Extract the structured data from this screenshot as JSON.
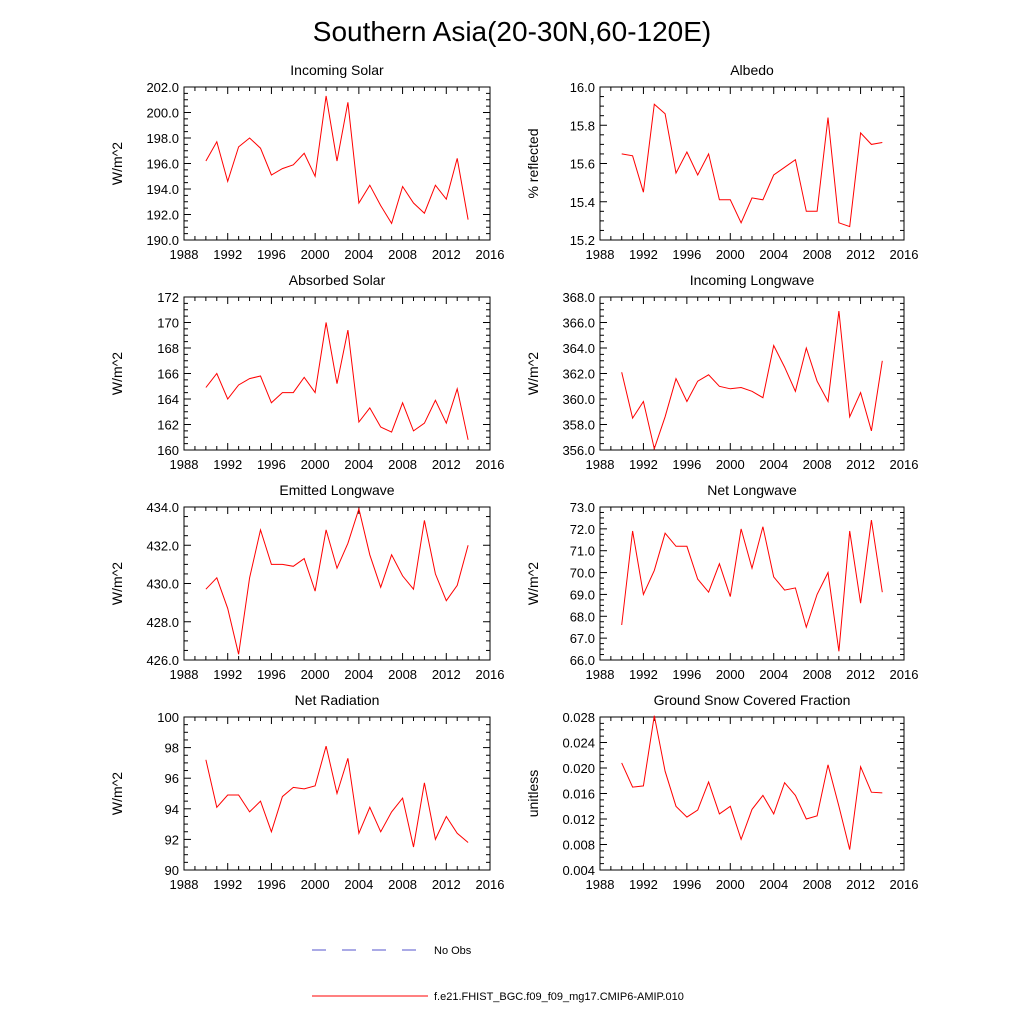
{
  "figure": {
    "title": "Southern Asia(20-30N,60-120E)",
    "line_color": "#ff0000",
    "obs_color": "#5555cc"
  },
  "legend": {
    "obs_label": "No Obs",
    "model_label": "f.e21.FHIST_BGC.f09_f09_mg17.CMIP6-AMIP.010"
  },
  "chart_data": [
    {
      "type": "line",
      "title": "Incoming Solar",
      "ylabel": "W/m^2",
      "xlabel": "",
      "xlim": [
        1988,
        2016
      ],
      "xticks": [
        "1988",
        "1992",
        "1996",
        "2000",
        "2004",
        "2008",
        "2012",
        "2016"
      ],
      "ylim": [
        190,
        202
      ],
      "yticks": [
        "190.0",
        "192.0",
        "194.0",
        "196.0",
        "198.0",
        "200.0",
        "202.0"
      ],
      "x": [
        1990,
        1991,
        1992,
        1993,
        1994,
        1995,
        1996,
        1997,
        1998,
        1999,
        2000,
        2001,
        2002,
        2003,
        2004,
        2005,
        2006,
        2007,
        2008,
        2009,
        2010,
        2011,
        2012,
        2013,
        2014
      ],
      "values": [
        196.2,
        197.7,
        194.6,
        197.3,
        198.0,
        197.2,
        195.1,
        195.6,
        195.9,
        196.8,
        195.0,
        201.3,
        196.2,
        200.8,
        192.9,
        194.3,
        192.7,
        191.3,
        194.2,
        192.9,
        192.1,
        194.3,
        193.2,
        196.4,
        191.6
      ]
    },
    {
      "type": "line",
      "title": "Albedo",
      "ylabel": "% reflected",
      "xlabel": "",
      "xlim": [
        1988,
        2016
      ],
      "xticks": [
        "1988",
        "1992",
        "1996",
        "2000",
        "2004",
        "2008",
        "2012",
        "2016"
      ],
      "ylim": [
        15.2,
        16.0
      ],
      "yticks": [
        "15.2",
        "15.4",
        "15.6",
        "15.8",
        "16.0"
      ],
      "x": [
        1990,
        1991,
        1992,
        1993,
        1994,
        1995,
        1996,
        1997,
        1998,
        1999,
        2000,
        2001,
        2002,
        2003,
        2004,
        2005,
        2006,
        2007,
        2008,
        2009,
        2010,
        2011,
        2012,
        2013,
        2014
      ],
      "values": [
        15.65,
        15.64,
        15.45,
        15.91,
        15.86,
        15.55,
        15.66,
        15.54,
        15.65,
        15.41,
        15.41,
        15.29,
        15.42,
        15.41,
        15.54,
        15.58,
        15.62,
        15.35,
        15.35,
        15.84,
        15.29,
        15.27,
        15.76,
        15.7,
        15.71
      ]
    },
    {
      "type": "line",
      "title": "Absorbed Solar",
      "ylabel": "W/m^2",
      "xlabel": "",
      "xlim": [
        1988,
        2016
      ],
      "xticks": [
        "1988",
        "1992",
        "1996",
        "2000",
        "2004",
        "2008",
        "2012",
        "2016"
      ],
      "ylim": [
        160,
        172
      ],
      "yticks": [
        "160",
        "162",
        "164",
        "166",
        "168",
        "170",
        "172"
      ],
      "x": [
        1990,
        1991,
        1992,
        1993,
        1994,
        1995,
        1996,
        1997,
        1998,
        1999,
        2000,
        2001,
        2002,
        2003,
        2004,
        2005,
        2006,
        2007,
        2008,
        2009,
        2010,
        2011,
        2012,
        2013,
        2014
      ],
      "values": [
        164.9,
        166.0,
        164.0,
        165.1,
        165.6,
        165.8,
        163.7,
        164.5,
        164.5,
        165.7,
        164.5,
        170.0,
        165.2,
        169.4,
        162.2,
        163.3,
        161.8,
        161.4,
        163.7,
        161.5,
        162.1,
        163.9,
        162.1,
        164.8,
        160.8
      ]
    },
    {
      "type": "line",
      "title": "Incoming Longwave",
      "ylabel": "W/m^2",
      "xlabel": "",
      "xlim": [
        1988,
        2016
      ],
      "xticks": [
        "1988",
        "1992",
        "1996",
        "2000",
        "2004",
        "2008",
        "2012",
        "2016"
      ],
      "ylim": [
        356,
        368
      ],
      "yticks": [
        "356.0",
        "358.0",
        "360.0",
        "362.0",
        "364.0",
        "366.0",
        "368.0"
      ],
      "x": [
        1990,
        1991,
        1992,
        1993,
        1994,
        1995,
        1996,
        1997,
        1998,
        1999,
        2000,
        2001,
        2002,
        2003,
        2004,
        2005,
        2006,
        2007,
        2008,
        2009,
        2010,
        2011,
        2012,
        2013,
        2014
      ],
      "values": [
        362.1,
        358.5,
        359.8,
        356.1,
        358.6,
        361.6,
        359.8,
        361.4,
        361.9,
        361.0,
        360.8,
        360.9,
        360.6,
        360.1,
        364.2,
        362.5,
        360.6,
        364.0,
        361.4,
        359.8,
        366.9,
        358.6,
        360.5,
        357.5,
        363.0
      ]
    },
    {
      "type": "line",
      "title": "Emitted Longwave",
      "ylabel": "W/m^2",
      "xlabel": "",
      "xlim": [
        1988,
        2016
      ],
      "xticks": [
        "1988",
        "1992",
        "1996",
        "2000",
        "2004",
        "2008",
        "2012",
        "2016"
      ],
      "ylim": [
        426,
        434
      ],
      "yticks": [
        "426.0",
        "428.0",
        "430.0",
        "432.0",
        "434.0"
      ],
      "x": [
        1990,
        1991,
        1992,
        1993,
        1994,
        1995,
        1996,
        1997,
        1998,
        1999,
        2000,
        2001,
        2002,
        2003,
        2004,
        2005,
        2006,
        2007,
        2008,
        2009,
        2010,
        2011,
        2012,
        2013,
        2014
      ],
      "values": [
        429.7,
        430.3,
        428.7,
        426.3,
        430.3,
        432.8,
        431.0,
        431.0,
        430.9,
        431.3,
        429.6,
        432.8,
        430.8,
        432.1,
        433.9,
        431.5,
        429.8,
        431.5,
        430.4,
        429.7,
        433.3,
        430.5,
        429.1,
        429.9,
        432.0
      ]
    },
    {
      "type": "line",
      "title": "Net Longwave",
      "ylabel": "W/m^2",
      "xlabel": "",
      "xlim": [
        1988,
        2016
      ],
      "xticks": [
        "1988",
        "1992",
        "1996",
        "2000",
        "2004",
        "2008",
        "2012",
        "2016"
      ],
      "ylim": [
        66,
        73
      ],
      "yticks": [
        "66.0",
        "67.0",
        "68.0",
        "69.0",
        "70.0",
        "71.0",
        "72.0",
        "73.0"
      ],
      "x": [
        1990,
        1991,
        1992,
        1993,
        1994,
        1995,
        1996,
        1997,
        1998,
        1999,
        2000,
        2001,
        2002,
        2003,
        2004,
        2005,
        2006,
        2007,
        2008,
        2009,
        2010,
        2011,
        2012,
        2013,
        2014
      ],
      "values": [
        67.6,
        71.9,
        69.0,
        70.1,
        71.8,
        71.2,
        71.2,
        69.7,
        69.1,
        70.4,
        68.9,
        72.0,
        70.2,
        72.1,
        69.8,
        69.2,
        69.3,
        67.5,
        69.0,
        70.0,
        66.4,
        71.9,
        68.6,
        72.4,
        69.1
      ]
    },
    {
      "type": "line",
      "title": "Net Radiation",
      "ylabel": "W/m^2",
      "xlabel": "",
      "xlim": [
        1988,
        2016
      ],
      "xticks": [
        "1988",
        "1992",
        "1996",
        "2000",
        "2004",
        "2008",
        "2012",
        "2016"
      ],
      "ylim": [
        90,
        100
      ],
      "yticks": [
        "90",
        "92",
        "94",
        "96",
        "98",
        "100"
      ],
      "x": [
        1990,
        1991,
        1992,
        1993,
        1994,
        1995,
        1996,
        1997,
        1998,
        1999,
        2000,
        2001,
        2002,
        2003,
        2004,
        2005,
        2006,
        2007,
        2008,
        2009,
        2010,
        2011,
        2012,
        2013,
        2014
      ],
      "values": [
        97.2,
        94.1,
        94.9,
        94.9,
        93.8,
        94.5,
        92.5,
        94.8,
        95.4,
        95.3,
        95.5,
        98.1,
        95.0,
        97.3,
        92.4,
        94.1,
        92.5,
        93.8,
        94.7,
        91.5,
        95.7,
        92.0,
        93.5,
        92.4,
        91.8
      ]
    },
    {
      "type": "line",
      "title": "Ground Snow Covered Fraction",
      "ylabel": "unitless",
      "xlabel": "",
      "xlim": [
        1988,
        2016
      ],
      "xticks": [
        "1988",
        "1992",
        "1996",
        "2000",
        "2004",
        "2008",
        "2012",
        "2016"
      ],
      "ylim": [
        0.004,
        0.028
      ],
      "yticks": [
        "0.004",
        "0.008",
        "0.012",
        "0.016",
        "0.020",
        "0.024",
        "0.028"
      ],
      "x": [
        1990,
        1991,
        1992,
        1993,
        1994,
        1995,
        1996,
        1997,
        1998,
        1999,
        2000,
        2001,
        2002,
        2003,
        2004,
        2005,
        2006,
        2007,
        2008,
        2009,
        2010,
        2011,
        2012,
        2013,
        2014
      ],
      "values": [
        0.0208,
        0.017,
        0.0172,
        0.0282,
        0.0195,
        0.014,
        0.0123,
        0.0134,
        0.0178,
        0.0128,
        0.014,
        0.0088,
        0.0135,
        0.0157,
        0.0128,
        0.0177,
        0.0157,
        0.012,
        0.0125,
        0.0205,
        0.014,
        0.0072,
        0.0202,
        0.0162,
        0.0161
      ]
    }
  ]
}
